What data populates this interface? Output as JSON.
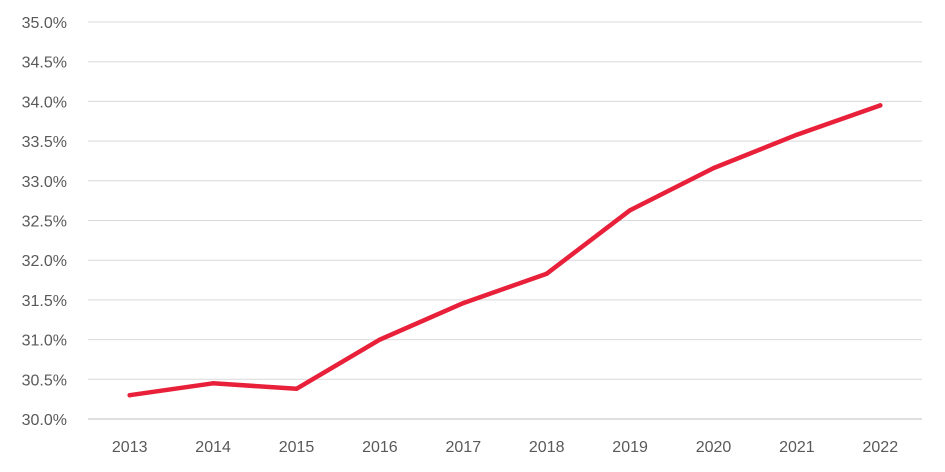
{
  "chart_data": {
    "type": "line",
    "title": "",
    "xlabel": "",
    "ylabel": "",
    "categories": [
      "2013",
      "2014",
      "2015",
      "2016",
      "2017",
      "2018",
      "2019",
      "2020",
      "2021",
      "2022"
    ],
    "series": [
      {
        "values": [
          30.3,
          30.45,
          30.38,
          31.0,
          31.46,
          31.83,
          32.63,
          33.16,
          33.58,
          33.95
        ],
        "color": "#e8203a"
      }
    ],
    "ylim": [
      30.0,
      35.0
    ],
    "yticks": [
      30.0,
      30.5,
      31.0,
      31.5,
      32.0,
      32.5,
      33.0,
      33.5,
      34.0,
      34.5,
      35.0
    ],
    "ytick_labels": [
      "30.0%",
      "30.5%",
      "31.0%",
      "31.5%",
      "32.0%",
      "32.5%",
      "33.0%",
      "33.5%",
      "34.0%",
      "34.5%",
      "35.0%"
    ],
    "grid": true,
    "legend": "none"
  }
}
